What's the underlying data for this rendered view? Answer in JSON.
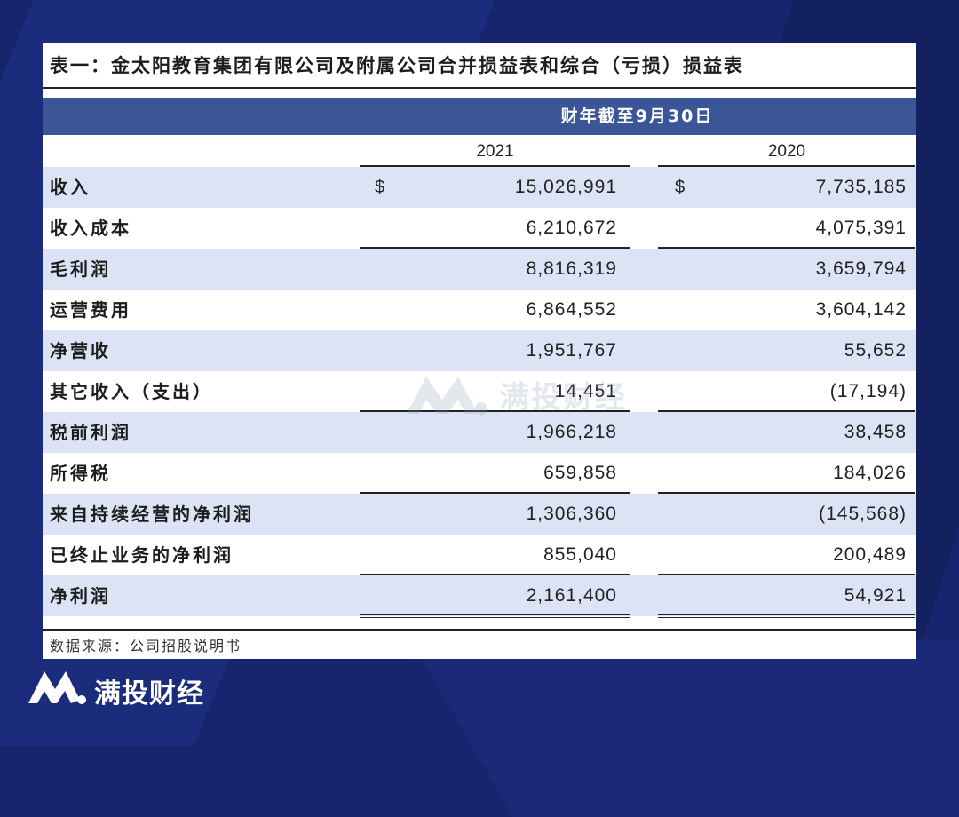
{
  "title": "表一：金太阳教育集团有限公司及附属公司合并损益表和综合（亏损）损益表",
  "period_header": "财年截至9月30日",
  "years": [
    "2021",
    "2020"
  ],
  "currency_symbol": "$",
  "rows": [
    {
      "label": "收入",
      "v2021": "15,026,991",
      "v2020": "7,735,185"
    },
    {
      "label": "收入成本",
      "v2021": "6,210,672",
      "v2020": "4,075,391"
    },
    {
      "label": "毛利润",
      "v2021": "8,816,319",
      "v2020": "3,659,794"
    },
    {
      "label": "运营费用",
      "v2021": "6,864,552",
      "v2020": "3,604,142"
    },
    {
      "label": "净营收",
      "v2021": "1,951,767",
      "v2020": "55,652"
    },
    {
      "label": "其它收入（支出）",
      "v2021": "14,451",
      "v2020": "(17,194)"
    },
    {
      "label": "税前利润",
      "v2021": "1,966,218",
      "v2020": "38,458"
    },
    {
      "label": "所得税",
      "v2021": "659,858",
      "v2020": "184,026"
    },
    {
      "label": "来自持续经营的净利润",
      "v2021": "1,306,360",
      "v2020": "(145,568)"
    },
    {
      "label": "已终止业务的净利润",
      "v2021": "855,040",
      "v2020": "200,489"
    },
    {
      "label": "净利润",
      "v2021": "2,161,400",
      "v2020": "54,921"
    }
  ],
  "source": "数据来源：公司招股说明书",
  "watermark": "满投财经",
  "brand": {
    "name": "满投财经",
    "logo_icon": "brand-m-logo-icon"
  }
}
